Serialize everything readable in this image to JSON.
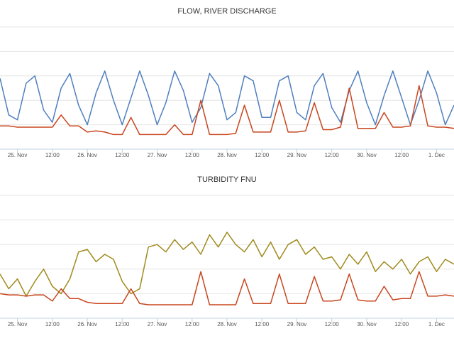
{
  "chart_data": [
    {
      "type": "line",
      "title": "FLOW, RIVER DISCHARGE",
      "x": [
        -6,
        -3,
        0,
        3,
        6,
        9,
        12,
        15,
        18,
        21,
        24,
        27,
        30,
        33,
        36,
        39,
        42,
        45,
        48,
        51,
        54,
        57,
        60,
        63,
        66,
        69,
        72,
        75,
        78,
        81,
        84,
        87,
        90,
        93,
        96,
        99,
        102,
        105,
        108,
        111,
        114,
        117,
        120,
        123,
        126,
        129,
        132,
        135,
        138,
        141,
        144,
        147,
        150
      ],
      "xlim": [
        -6,
        150
      ],
      "xticks": [
        {
          "value": 0,
          "label": "25. Nov"
        },
        {
          "value": 12,
          "label": "12:00"
        },
        {
          "value": 24,
          "label": "26. Nov"
        },
        {
          "value": 36,
          "label": "12:00"
        },
        {
          "value": 48,
          "label": "27. Nov"
        },
        {
          "value": 60,
          "label": "12:00"
        },
        {
          "value": 72,
          "label": "28. Nov"
        },
        {
          "value": 84,
          "label": "12:00"
        },
        {
          "value": 96,
          "label": "29. Nov"
        },
        {
          "value": 108,
          "label": "12:00"
        },
        {
          "value": 120,
          "label": "30. Nov"
        },
        {
          "value": 132,
          "label": "12:00"
        },
        {
          "value": 144,
          "label": "1. Dec"
        }
      ],
      "ylim": [
        0,
        5
      ],
      "yticks": [
        0,
        1,
        2,
        3,
        4,
        5
      ],
      "grid": true,
      "series": [
        {
          "color": "#4f7fbf",
          "values": [
            2.9,
            1.4,
            1.2,
            2.7,
            3.0,
            1.6,
            1.1,
            2.5,
            3.1,
            1.8,
            1.0,
            2.3,
            3.2,
            2.0,
            1.0,
            2.1,
            3.2,
            2.2,
            1.0,
            1.9,
            3.2,
            2.4,
            1.1,
            1.7,
            3.1,
            2.6,
            1.2,
            1.5,
            3.0,
            2.8,
            1.3,
            1.3,
            2.8,
            3.0,
            1.5,
            1.2,
            2.6,
            3.1,
            1.7,
            1.1,
            2.4,
            3.2,
            1.9,
            1.0,
            2.2,
            3.2,
            2.1,
            1.0,
            2.0,
            3.2,
            2.3,
            1.0,
            1.8
          ]
        },
        {
          "color": "#c8461e",
          "values": [
            0.95,
            0.95,
            0.9,
            0.9,
            0.9,
            0.9,
            0.9,
            1.4,
            0.95,
            0.95,
            0.7,
            0.75,
            0.7,
            0.6,
            0.6,
            1.3,
            0.6,
            0.6,
            0.6,
            0.6,
            1.0,
            0.6,
            0.6,
            2.0,
            0.6,
            0.6,
            0.6,
            0.65,
            1.8,
            0.7,
            0.7,
            0.7,
            2.0,
            0.7,
            0.7,
            0.75,
            1.9,
            0.8,
            0.8,
            0.9,
            2.5,
            0.85,
            0.85,
            0.85,
            1.5,
            0.9,
            0.9,
            0.95,
            2.6,
            0.95,
            0.9,
            0.9,
            0.85
          ]
        }
      ]
    },
    {
      "type": "line",
      "title": "TURBIDITY FNU",
      "x": [
        -6,
        -3,
        0,
        3,
        6,
        9,
        12,
        15,
        18,
        21,
        24,
        27,
        30,
        33,
        36,
        39,
        42,
        45,
        48,
        51,
        54,
        57,
        60,
        63,
        66,
        69,
        72,
        75,
        78,
        81,
        84,
        87,
        90,
        93,
        96,
        99,
        102,
        105,
        108,
        111,
        114,
        117,
        120,
        123,
        126,
        129,
        132,
        135,
        138,
        141,
        144,
        147,
        150
      ],
      "xlim": [
        -6,
        150
      ],
      "xticks": [
        {
          "value": 0,
          "label": "25. Nov"
        },
        {
          "value": 12,
          "label": "12:00"
        },
        {
          "value": 24,
          "label": "26. Nov"
        },
        {
          "value": 36,
          "label": "12:00"
        },
        {
          "value": 48,
          "label": "27. Nov"
        },
        {
          "value": 60,
          "label": "12:00"
        },
        {
          "value": 72,
          "label": "28. Nov"
        },
        {
          "value": 84,
          "label": "12:00"
        },
        {
          "value": 96,
          "label": "29. Nov"
        },
        {
          "value": 108,
          "label": "12:00"
        },
        {
          "value": 120,
          "label": "30. Nov"
        },
        {
          "value": 132,
          "label": "12:00"
        },
        {
          "value": 144,
          "label": "1. Dec"
        }
      ],
      "ylim": [
        0,
        5
      ],
      "yticks": [
        0,
        1,
        2,
        3,
        4,
        5
      ],
      "grid": true,
      "series": [
        {
          "color": "#a08a1d",
          "values": [
            1.8,
            1.2,
            1.6,
            0.9,
            1.5,
            2.0,
            1.3,
            1.0,
            1.6,
            2.7,
            2.8,
            2.3,
            2.6,
            2.4,
            1.5,
            1.0,
            1.2,
            2.9,
            3.0,
            2.7,
            3.2,
            2.8,
            3.1,
            2.6,
            3.4,
            2.9,
            3.5,
            3.0,
            2.7,
            3.2,
            2.5,
            3.1,
            2.4,
            3.0,
            3.2,
            2.6,
            2.9,
            2.4,
            2.5,
            2.0,
            2.6,
            2.2,
            2.7,
            1.9,
            2.3,
            2.0,
            2.4,
            1.8,
            2.3,
            2.5,
            1.9,
            2.4,
            2.2
          ]
        },
        {
          "color": "#c8461e",
          "values": [
            1.0,
            0.95,
            0.95,
            0.9,
            0.95,
            0.95,
            0.7,
            1.2,
            0.8,
            0.8,
            0.65,
            0.6,
            0.6,
            0.6,
            0.6,
            1.2,
            0.6,
            0.55,
            0.55,
            0.55,
            0.55,
            0.55,
            0.55,
            1.9,
            0.55,
            0.55,
            0.55,
            0.55,
            1.6,
            0.6,
            0.6,
            0.6,
            1.8,
            0.6,
            0.6,
            0.6,
            1.7,
            0.7,
            0.7,
            0.75,
            1.8,
            0.75,
            0.7,
            0.7,
            1.3,
            0.75,
            0.8,
            0.8,
            1.9,
            0.9,
            0.9,
            0.95,
            0.9
          ]
        }
      ]
    }
  ]
}
